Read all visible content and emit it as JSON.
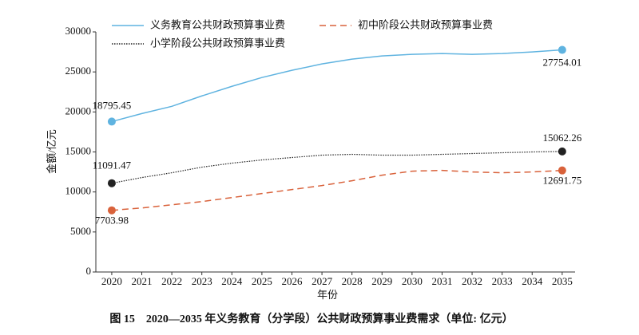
{
  "chart_data": {
    "type": "line",
    "x": [
      2020,
      2021,
      2022,
      2023,
      2024,
      2025,
      2026,
      2027,
      2028,
      2029,
      2030,
      2031,
      2032,
      2033,
      2034,
      2035
    ],
    "xlim": [
      2019.47,
      2035.43
    ],
    "xticks": [
      2020,
      2021,
      2022,
      2023,
      2024,
      2025,
      2026,
      2027,
      2028,
      2029,
      2030,
      2031,
      2032,
      2033,
      2034,
      2035
    ],
    "ylim": [
      0,
      30000
    ],
    "yticks": [
      0,
      5000,
      10000,
      15000,
      20000,
      25000,
      30000
    ],
    "xlabel": "年份",
    "ylabel": "金额/亿元",
    "caption": "图 15　2020—2035 年义务教育（分学段）公共财政预算事业费需求（单位: 亿元）",
    "data_labels": "ends",
    "series": [
      {
        "name": "义务教育公共财政预算事业费",
        "color": "#5fb3e0",
        "dash": "solid",
        "values": [
          18795.45,
          19800,
          20700,
          22000,
          23200,
          24300,
          25200,
          26000,
          26600,
          27000,
          27200,
          27300,
          27200,
          27300,
          27500,
          27754.01
        ]
      },
      {
        "name": "初中阶段公共财政预算事业费",
        "color": "#d9623b",
        "dash": "dashed",
        "values": [
          7703.98,
          8000,
          8400,
          8800,
          9300,
          9800,
          10300,
          10800,
          11400,
          12100,
          12600,
          12700,
          12500,
          12400,
          12500,
          12691.75
        ]
      },
      {
        "name": "小学阶段公共财政预算事业费",
        "color": "#222222",
        "dash": "dotted",
        "values": [
          11091.47,
          11800,
          12400,
          13100,
          13600,
          14000,
          14300,
          14600,
          14700,
          14600,
          14600,
          14700,
          14800,
          14900,
          15000,
          15062.26
        ]
      }
    ]
  }
}
